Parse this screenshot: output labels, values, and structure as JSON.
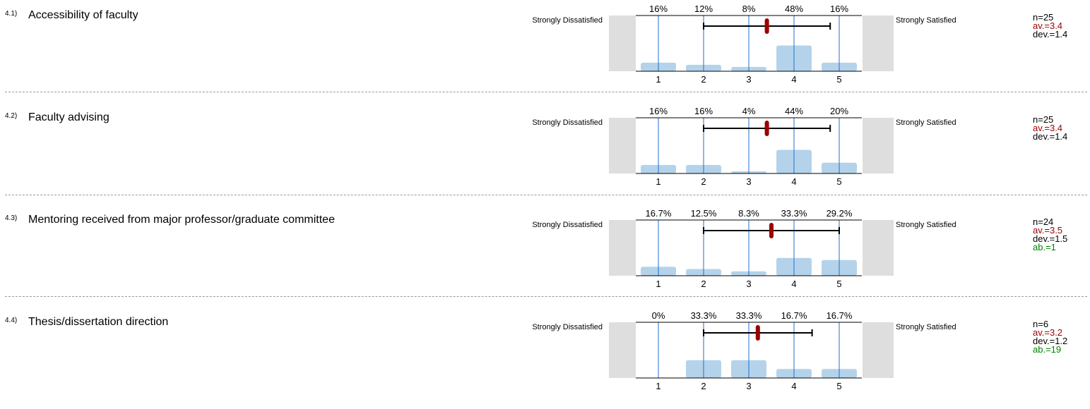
{
  "scale": {
    "left_label": "Strongly Dissatisfied",
    "right_label": "Strongly Satisfied",
    "ticks": [
      "1",
      "2",
      "3",
      "4",
      "5"
    ]
  },
  "colors": {
    "bar": "#b4d3ea",
    "gridline": "#1f6fd0",
    "mean": "#990000",
    "ab": "#007f00"
  },
  "chart_data": [
    {
      "type": "bar",
      "number": "4.1)",
      "title": "Accessibility of faculty",
      "categories": [
        "1",
        "2",
        "3",
        "4",
        "5"
      ],
      "values": [
        16,
        12,
        8,
        48,
        16
      ],
      "value_labels": [
        "16%",
        "12%",
        "8%",
        "48%",
        "16%"
      ],
      "mean": 3.4,
      "sd": 1.4,
      "stats": {
        "n": "n=25",
        "av": "av.=3.4",
        "dev": "dev.=1.4",
        "ab": ""
      }
    },
    {
      "type": "bar",
      "number": "4.2)",
      "title": "Faculty advising",
      "categories": [
        "1",
        "2",
        "3",
        "4",
        "5"
      ],
      "values": [
        16,
        16,
        4,
        44,
        20
      ],
      "value_labels": [
        "16%",
        "16%",
        "4%",
        "44%",
        "20%"
      ],
      "mean": 3.4,
      "sd": 1.4,
      "stats": {
        "n": "n=25",
        "av": "av.=3.4",
        "dev": "dev.=1.4",
        "ab": ""
      }
    },
    {
      "type": "bar",
      "number": "4.3)",
      "title": "Mentoring received from major professor/graduate committee",
      "categories": [
        "1",
        "2",
        "3",
        "4",
        "5"
      ],
      "values": [
        16.7,
        12.5,
        8.3,
        33.3,
        29.2
      ],
      "value_labels": [
        "16.7%",
        "12.5%",
        "8.3%",
        "33.3%",
        "29.2%"
      ],
      "mean": 3.5,
      "sd": 1.5,
      "stats": {
        "n": "n=24",
        "av": "av.=3.5",
        "dev": "dev.=1.5",
        "ab": "ab.=1"
      }
    },
    {
      "type": "bar",
      "number": "4.4)",
      "title": "Thesis/dissertation direction",
      "categories": [
        "1",
        "2",
        "3",
        "4",
        "5"
      ],
      "values": [
        0,
        33.3,
        33.3,
        16.7,
        16.7
      ],
      "value_labels": [
        "0%",
        "33.3%",
        "33.3%",
        "16.7%",
        "16.7%"
      ],
      "mean": 3.2,
      "sd": 1.2,
      "stats": {
        "n": "n=6",
        "av": "av.=3.2",
        "dev": "dev.=1.2",
        "ab": "ab.=19"
      }
    }
  ]
}
